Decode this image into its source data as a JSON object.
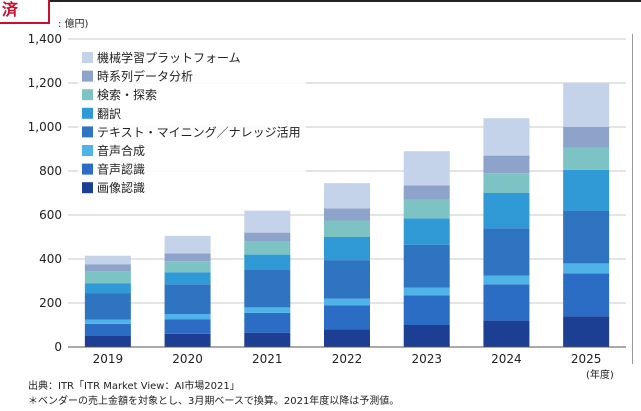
{
  "corner_stamp": "済",
  "unit_label": ": 億円)",
  "year_unit": "(年度)",
  "source_line1": "出典：ITR「ITR Market View：AI市場2021」",
  "source_line2": "＊ベンダーの売上金額を対象とし、3月期ベースで換算。2021年度以降は予測値。",
  "chart_data": {
    "type": "bar",
    "stacked": true,
    "categories": [
      "2019",
      "2020",
      "2021",
      "2022",
      "2023",
      "2024",
      "2025"
    ],
    "ylim": [
      0,
      1400
    ],
    "yticks": [
      0,
      200,
      400,
      600,
      800,
      1000,
      1200,
      1400
    ],
    "ytick_labels": [
      "0",
      "200",
      "400",
      "600",
      "800",
      "1,000",
      "1,200",
      "1,400"
    ],
    "grid": true,
    "legend_position": "top-left",
    "series": [
      {
        "name": "画像認識",
        "color": "#1c3f94",
        "values": [
          50,
          60,
          65,
          80,
          100,
          120,
          140
        ]
      },
      {
        "name": "音声認識",
        "color": "#2b6cc4",
        "values": [
          55,
          65,
          90,
          110,
          135,
          165,
          195
        ]
      },
      {
        "name": "音声合成",
        "color": "#4fb3e8",
        "values": [
          20,
          25,
          25,
          30,
          35,
          40,
          45
        ]
      },
      {
        "name": "テキスト・マイニング／ナレッジ活用",
        "color": "#2f74c0",
        "values": [
          120,
          135,
          170,
          175,
          195,
          215,
          240
        ]
      },
      {
        "name": "翻訳",
        "color": "#2f9ad6",
        "values": [
          45,
          55,
          70,
          105,
          120,
          160,
          185
        ]
      },
      {
        "name": "検索・探索",
        "color": "#7dc3c4",
        "values": [
          55,
          50,
          60,
          75,
          85,
          90,
          100
        ]
      },
      {
        "name": "時系列データ分析",
        "color": "#8ea3c9",
        "values": [
          30,
          35,
          40,
          55,
          65,
          80,
          95
        ]
      },
      {
        "name": "機械学習プラットフォーム",
        "color": "#c5d3ea",
        "values": [
          40,
          80,
          100,
          115,
          155,
          170,
          200
        ]
      }
    ]
  }
}
